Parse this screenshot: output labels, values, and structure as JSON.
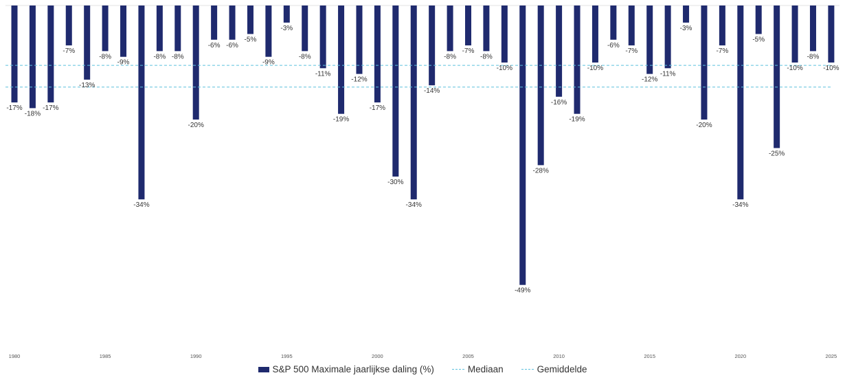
{
  "colors": {
    "bar": "#1f2a6e",
    "reference": "#5bc0de",
    "baseline": "#e3e3e3"
  },
  "chart_data": {
    "type": "bar",
    "x": [
      1980,
      1981,
      1982,
      1983,
      1984,
      1985,
      1986,
      1987,
      1988,
      1989,
      1990,
      1991,
      1992,
      1993,
      1994,
      1995,
      1996,
      1997,
      1998,
      1999,
      2000,
      2001,
      2002,
      2003,
      2004,
      2005,
      2006,
      2007,
      2008,
      2009,
      2010,
      2011,
      2012,
      2013,
      2014,
      2015,
      2016,
      2017,
      2018,
      2019,
      2020,
      2021,
      2022,
      2023,
      2024,
      2025
    ],
    "series": [
      {
        "name": "S&P 500 Maximale jaarlijkse daling (%)",
        "values": [
          -17,
          -18,
          -17,
          -7,
          -13,
          -8,
          -9,
          -34,
          -8,
          -8,
          -20,
          -6,
          -6,
          -5,
          -9,
          -3,
          -8,
          -11,
          -19,
          -12,
          -17,
          -30,
          -34,
          -14,
          -8,
          -7,
          -8,
          -10,
          -49,
          -28,
          -16,
          -19,
          -10,
          -6,
          -7,
          -12,
          -11,
          -3,
          -20,
          -7,
          -34,
          -5,
          -25,
          -10,
          -8,
          -10
        ],
        "labels": [
          "-17%",
          "-18%",
          "-17%",
          "-7%",
          "-13%",
          "-8%",
          "-9%",
          "-34%",
          "-8%",
          "-8%",
          "-20%",
          "-6%",
          "-6%",
          "-5%",
          "-9%",
          "-3%",
          "-8%",
          "-11%",
          "-19%",
          "-12%",
          "-17%",
          "-30%",
          "-34%",
          "-14%",
          "-8%",
          "-7%",
          "-8%",
          "-10%",
          "-49%",
          "-28%",
          "-16%",
          "-19%",
          "-10%",
          "-6%",
          "-7%",
          "-12%",
          "-11%",
          "-3%",
          "-20%",
          "-7%",
          "-34%",
          "-5%",
          "-25%",
          "-10%",
          "-8%",
          "-10%"
        ]
      }
    ],
    "tick_labels": [
      "1980",
      "1985",
      "1990",
      "1995",
      "2000",
      "2005",
      "2010",
      "2015",
      "2020",
      "2025"
    ],
    "reference_lines": [
      {
        "name": "Mediaan",
        "value": -10.5
      },
      {
        "name": "Gemiddelde",
        "value": -14.3
      }
    ],
    "ylim": [
      -60,
      0
    ],
    "legend": {
      "position": "bottom",
      "items": [
        "S&P 500 Maximale jaarlijkse daling (%)",
        "Mediaan",
        "Gemiddelde"
      ]
    }
  }
}
